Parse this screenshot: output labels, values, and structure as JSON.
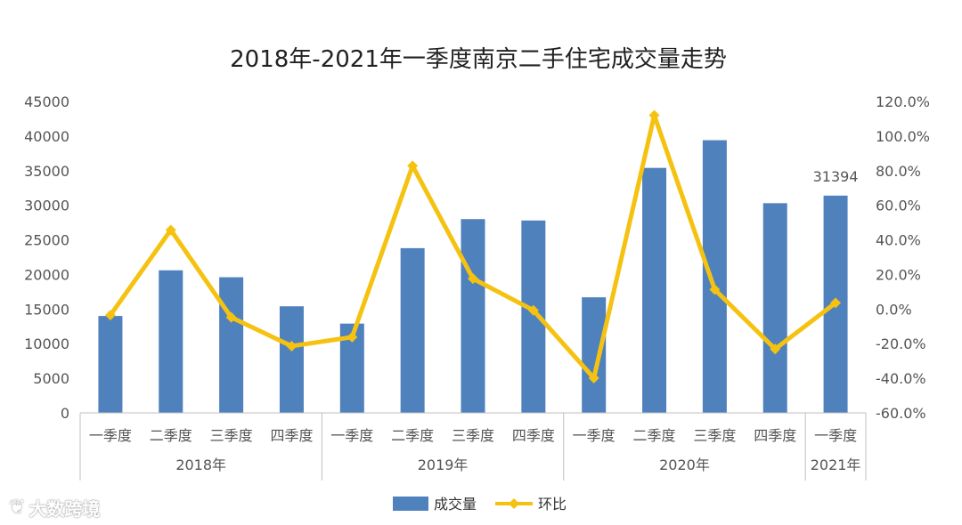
{
  "chart_data": {
    "type": "bar",
    "title": "2018年-2021年一季度南京二手住宅成交量走势",
    "categories": [
      "一季度",
      "二季度",
      "三季度",
      "四季度",
      "一季度",
      "二季度",
      "三季度",
      "四季度",
      "一季度",
      "二季度",
      "三季度",
      "四季度",
      "一季度"
    ],
    "groups": [
      {
        "label": "2018年",
        "count": 4
      },
      {
        "label": "2019年",
        "count": 4
      },
      {
        "label": "2020年",
        "count": 4
      },
      {
        "label": "2021年",
        "count": 1
      }
    ],
    "series": [
      {
        "name": "成交量",
        "type": "bar",
        "axis": "left",
        "color": "#4F81BD",
        "values": [
          14000,
          20600,
          19600,
          15400,
          12900,
          23800,
          28000,
          27800,
          16700,
          35400,
          39400,
          30300,
          31394
        ]
      },
      {
        "name": "环比",
        "type": "line",
        "axis": "right",
        "color": "#F5C211",
        "values": [
          -3.5,
          45.7,
          -4.8,
          -21.4,
          -16.2,
          82.8,
          17.6,
          -0.7,
          -39.9,
          112.0,
          11.3,
          -23.1,
          3.6
        ]
      }
    ],
    "left_axis": {
      "min": 0,
      "max": 45000,
      "step": 5000,
      "ticks": [
        "0",
        "5000",
        "10000",
        "15000",
        "20000",
        "25000",
        "30000",
        "35000",
        "40000",
        "45000"
      ]
    },
    "right_axis": {
      "min": -60,
      "max": 120,
      "step": 20,
      "ticks": [
        "-60.0%",
        "-40.0%",
        "-20.0%",
        "0.0%",
        "20.0%",
        "40.0%",
        "60.0%",
        "80.0%",
        "100.0%",
        "120.0%"
      ]
    },
    "annotations": [
      {
        "index": 12,
        "text": "31394"
      }
    ],
    "legend": {
      "position": "bottom",
      "entries": [
        "成交量",
        "环比"
      ]
    },
    "grid": false
  },
  "watermark": {
    "text": "大数跨境",
    "icon": "logo-icon"
  }
}
